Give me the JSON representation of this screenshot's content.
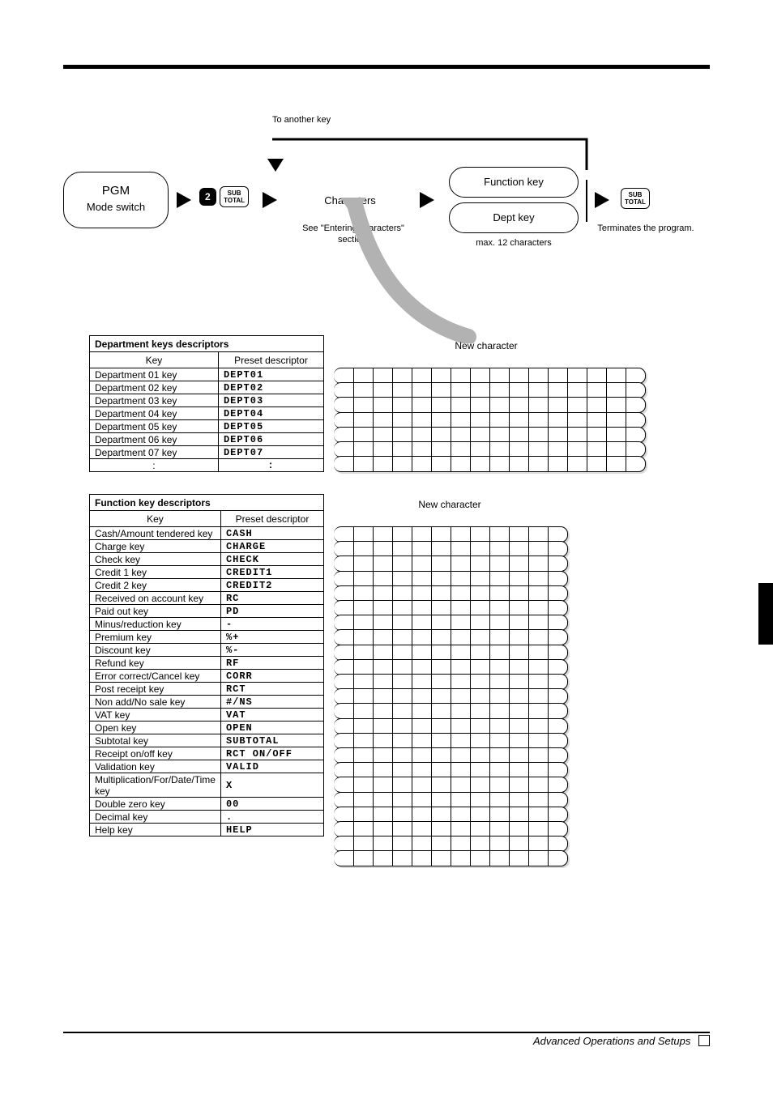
{
  "footer": {
    "text": "Advanced Operations and Setups"
  },
  "flow": {
    "note_top": "To another key",
    "step1": {
      "line1": "PGM",
      "line2": "Mode switch"
    },
    "step1_below": "",
    "key2_digit": "2",
    "key_sub": "SUB\nTOTAL",
    "step3": "Characters",
    "step3_b1": "See \"Entering characters\"",
    "step3_b2": "section.",
    "step4_top": "Function key",
    "step4_bot": "Dept key",
    "step4_b1": "max. 12 characters",
    "step4_b2": "Terminates the program."
  },
  "blockA": {
    "title": "Department keys descriptors",
    "headers": {
      "key": "Key",
      "preset": "Preset descriptor"
    },
    "newchar_label": "New character",
    "entry_cols": 16,
    "rows": [
      {
        "key": "Department 01 key",
        "preset": "DEPT01"
      },
      {
        "key": "Department 02 key",
        "preset": "DEPT02"
      },
      {
        "key": "Department 03 key",
        "preset": "DEPT03"
      },
      {
        "key": "Department 04 key",
        "preset": "DEPT04"
      },
      {
        "key": "Department 05 key",
        "preset": "DEPT05"
      },
      {
        "key": "Department 06 key",
        "preset": "DEPT06"
      },
      {
        "key": "Department 07 key",
        "preset": "DEPT07"
      },
      {
        "key": ":",
        "preset": ":"
      }
    ]
  },
  "blockB": {
    "title": "Function key descriptors",
    "headers": {
      "key": "Key",
      "preset": "Preset descriptor"
    },
    "newchar_label": "New character",
    "entry_cols": 12,
    "rows": [
      {
        "key": "Cash/Amount tendered key",
        "preset": "CASH"
      },
      {
        "key": "Charge key",
        "preset": "CHARGE"
      },
      {
        "key": "Check key",
        "preset": "CHECK"
      },
      {
        "key": "Credit 1 key",
        "preset": "CREDIT1"
      },
      {
        "key": "Credit 2 key",
        "preset": "CREDIT2"
      },
      {
        "key": "Received on account key",
        "preset": "RC"
      },
      {
        "key": "Paid out key",
        "preset": "PD"
      },
      {
        "key": "Minus/reduction key",
        "preset": "-"
      },
      {
        "key": "Premium key",
        "preset": "%+"
      },
      {
        "key": "Discount key",
        "preset": "%-"
      },
      {
        "key": "Refund key",
        "preset": "RF"
      },
      {
        "key": "Error correct/Cancel key",
        "preset": "CORR"
      },
      {
        "key": "Post receipt key",
        "preset": "RCT"
      },
      {
        "key": "Non add/No sale key",
        "preset": "#/NS"
      },
      {
        "key": "VAT key",
        "preset": "VAT"
      },
      {
        "key": "Open key",
        "preset": "OPEN"
      },
      {
        "key": "Subtotal key",
        "preset": "SUBTOTAL"
      },
      {
        "key": "Receipt on/off key",
        "preset": "RCT ON/OFF"
      },
      {
        "key": "Validation key",
        "preset": "VALID"
      },
      {
        "key": "Multiplication/For/Date/Time key",
        "preset": "X"
      },
      {
        "key": "Double zero key",
        "preset": "00"
      },
      {
        "key": "Decimal key",
        "preset": "."
      },
      {
        "key": "Help key",
        "preset": "HELP"
      }
    ]
  }
}
